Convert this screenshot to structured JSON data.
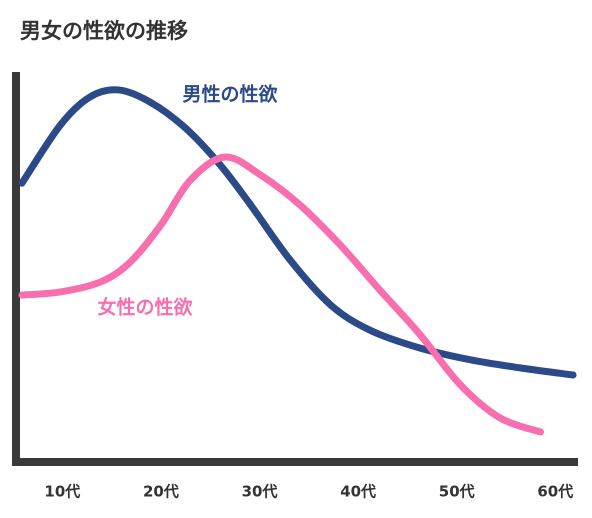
{
  "chart_data": {
    "type": "line",
    "title": "男女の性欲の推移",
    "xlim": [
      5.3,
      62.3
    ],
    "ylim": [
      0,
      100
    ],
    "xticks": [
      {
        "value": 10,
        "label": "10代"
      },
      {
        "value": 20,
        "label": "20代"
      },
      {
        "value": 30,
        "label": "30代"
      },
      {
        "value": 40,
        "label": "40代"
      },
      {
        "value": 50,
        "label": "50代"
      },
      {
        "value": 60,
        "label": "60代"
      }
    ],
    "series": [
      {
        "name": "男性の性欲",
        "color": "#2c4a87",
        "x": [
          5.9,
          9.8,
          12.8,
          15.7,
          18.9,
          22.5,
          26.0,
          29.1,
          33.1,
          37.2,
          41.2,
          46.3,
          51.4,
          56.5,
          61.8
        ],
        "values": [
          71.5,
          86.4,
          93.6,
          95.4,
          92.3,
          85.6,
          76.2,
          65.9,
          51.8,
          40.3,
          33.8,
          29.2,
          26.2,
          24.1,
          22.3
        ]
      },
      {
        "name": "女性の性欲",
        "color": "#f76fae",
        "x": [
          5.9,
          9.8,
          13.9,
          16.9,
          20.0,
          23.0,
          26.5,
          30.1,
          34.1,
          38.2,
          42.2,
          46.3,
          50.4,
          54.4,
          58.5
        ],
        "values": [
          42.8,
          43.6,
          46.2,
          51.3,
          60.8,
          72.3,
          78.2,
          73.6,
          65.9,
          55.6,
          44.1,
          32.6,
          19.7,
          11.3,
          7.7
        ]
      }
    ]
  }
}
